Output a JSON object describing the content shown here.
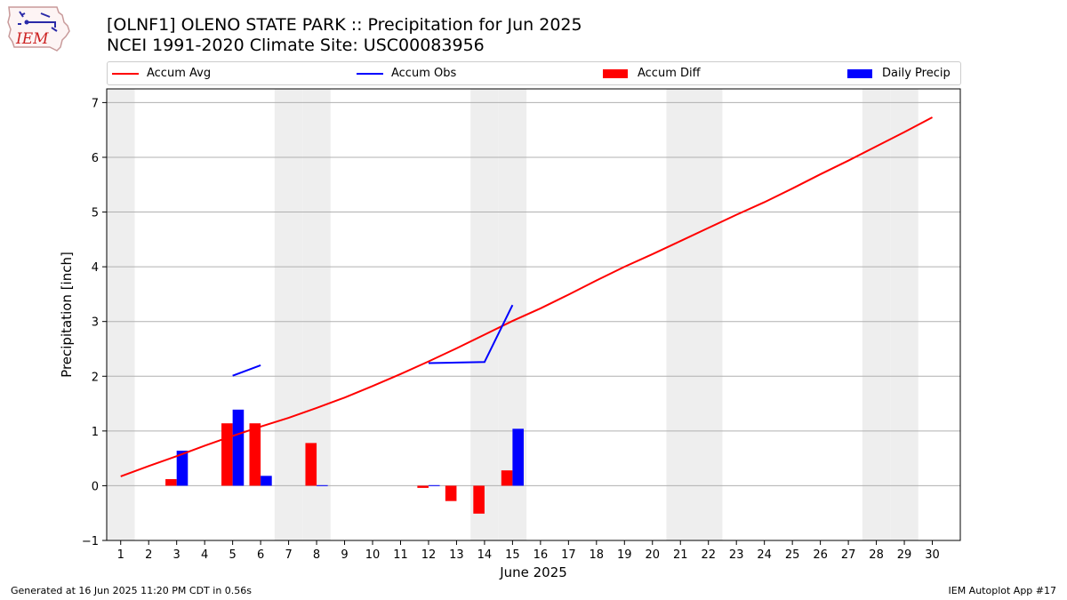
{
  "title_line1": "[OLNF1] OLENO STATE PARK :: Precipitation for Jun 2025",
  "title_line2": "NCEI 1991-2020 Climate Site: USC00083956",
  "logo_text": "IEM",
  "footer_left": "Generated at 16 Jun 2025 11:20 PM CDT in 0.56s",
  "footer_right": "IEM Autoplot App #17",
  "colors": {
    "avg": "#ff0000",
    "obs": "#0000ff",
    "diff": "#ff0000",
    "daily": "#0000ff",
    "weekend": "#eeeeee",
    "grid": "#b0b0b0"
  },
  "chart_data": {
    "type": "bar",
    "xlabel": "June 2025",
    "ylabel": "Precipitation [inch]",
    "xlim": [
      0.5,
      31.0
    ],
    "ylim": [
      -1.0,
      7.25
    ],
    "xticks": [
      1,
      2,
      3,
      4,
      5,
      6,
      7,
      8,
      9,
      10,
      11,
      12,
      13,
      14,
      15,
      16,
      17,
      18,
      19,
      20,
      21,
      22,
      23,
      24,
      25,
      26,
      27,
      28,
      29,
      30
    ],
    "yticks": [
      -1,
      0,
      1,
      2,
      3,
      4,
      5,
      6,
      7
    ],
    "grid": "horizontal",
    "legend_position": "top",
    "weekend_days": [
      1,
      7,
      8,
      14,
      15,
      21,
      22,
      28,
      29
    ],
    "legend": [
      "Accum Avg",
      "Accum Obs",
      "Accum Diff",
      "Daily Precip"
    ],
    "accum_avg": {
      "days": [
        1,
        2,
        3,
        4,
        5,
        6,
        7,
        8,
        9,
        10,
        11,
        12,
        13,
        14,
        15,
        16,
        17,
        18,
        19,
        20,
        21,
        22,
        23,
        24,
        25,
        26,
        27,
        28,
        29,
        30
      ],
      "values": [
        0.17,
        0.36,
        0.54,
        0.73,
        0.91,
        1.08,
        1.24,
        1.42,
        1.61,
        1.82,
        2.04,
        2.27,
        2.51,
        2.76,
        3.01,
        3.24,
        3.49,
        3.75,
        4.0,
        4.23,
        4.47,
        4.71,
        4.95,
        5.18,
        5.43,
        5.69,
        5.94,
        6.2,
        6.46,
        6.73
      ]
    },
    "accum_obs": {
      "segments": [
        {
          "days": [
            5,
            6
          ],
          "values": [
            2.01,
            2.2
          ]
        },
        {
          "days": [
            12,
            13,
            14,
            15
          ],
          "values": [
            2.24,
            2.25,
            2.26,
            3.3
          ]
        }
      ]
    },
    "accum_diff": {
      "days": [
        3,
        5,
        6,
        8,
        12,
        13,
        14,
        15
      ],
      "values": [
        0.12,
        1.14,
        1.14,
        0.78,
        -0.04,
        -0.28,
        -0.51,
        0.28
      ]
    },
    "daily_precip": {
      "days": [
        3,
        5,
        6,
        8,
        12,
        15
      ],
      "values": [
        0.64,
        1.39,
        0.18,
        0.01,
        0.01,
        1.04
      ]
    }
  }
}
